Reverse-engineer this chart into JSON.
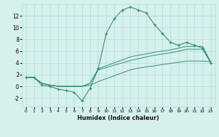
{
  "x": [
    0,
    1,
    2,
    3,
    4,
    5,
    6,
    7,
    8,
    9,
    10,
    11,
    12,
    13,
    14,
    15,
    16,
    17,
    18,
    19,
    20,
    21,
    22,
    23
  ],
  "y_main": [
    1.5,
    1.5,
    0.2,
    0.0,
    -0.5,
    -0.7,
    -1.0,
    -2.5,
    -0.3,
    3.0,
    9.0,
    11.5,
    13.0,
    13.5,
    13.0,
    12.5,
    10.5,
    9.0,
    7.5,
    7.0,
    7.5,
    7.0,
    6.5,
    4.0
  ],
  "y_line1": [
    1.5,
    1.5,
    0.5,
    0.2,
    0.0,
    0.0,
    0.0,
    0.0,
    0.5,
    3.0,
    3.5,
    4.0,
    4.5,
    5.0,
    5.3,
    5.5,
    5.8,
    6.0,
    6.2,
    6.5,
    6.8,
    6.8,
    6.8,
    4.2
  ],
  "y_line2": [
    1.5,
    1.5,
    0.5,
    0.2,
    0.0,
    0.0,
    0.0,
    0.0,
    0.5,
    2.8,
    3.2,
    3.6,
    4.0,
    4.4,
    4.7,
    5.0,
    5.3,
    5.5,
    5.7,
    6.0,
    6.3,
    6.3,
    6.3,
    4.2
  ],
  "y_line3": [
    1.5,
    1.5,
    0.5,
    0.2,
    0.0,
    0.0,
    0.0,
    0.0,
    0.2,
    0.8,
    1.3,
    1.8,
    2.3,
    2.8,
    3.1,
    3.3,
    3.5,
    3.7,
    3.9,
    4.1,
    4.3,
    4.3,
    4.3,
    4.2
  ],
  "color": "#2e8b72",
  "bg_color": "#d6f0ee",
  "grid_color": "#b0d8d4",
  "xlabel": "Humidex (Indice chaleur)",
  "xlim": [
    -0.5,
    23.5
  ],
  "ylim": [
    -3.5,
    14.0
  ],
  "yticks": [
    -2,
    0,
    2,
    4,
    6,
    8,
    10,
    12
  ],
  "xticks": [
    0,
    1,
    2,
    3,
    4,
    5,
    6,
    7,
    8,
    9,
    10,
    11,
    12,
    13,
    14,
    15,
    16,
    17,
    18,
    19,
    20,
    21,
    22,
    23
  ]
}
